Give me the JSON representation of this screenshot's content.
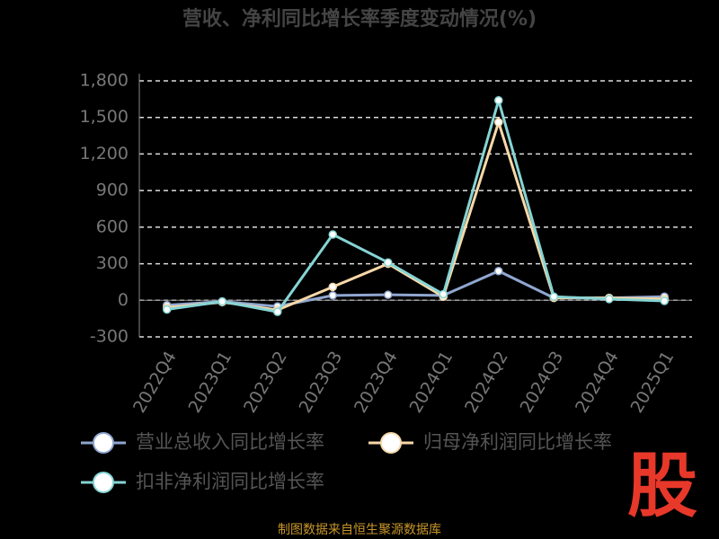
{
  "chart_data": {
    "type": "line",
    "title": "营收、净利同比增长率季度变动情况(%)",
    "categories": [
      "2022Q4",
      "2023Q1",
      "2023Q2",
      "2023Q3",
      "2023Q4",
      "2024Q1",
      "2024Q2",
      "2024Q3",
      "2024Q4",
      "2025Q1"
    ],
    "series": [
      {
        "name": "营业总收入同比增长率",
        "color": "#8fa6d0",
        "values": [
          -40,
          -10,
          -50,
          40,
          45,
          40,
          240,
          20,
          20,
          30
        ]
      },
      {
        "name": "归母净利润同比增长率",
        "color": "#f7d8a8",
        "values": [
          -60,
          -15,
          -80,
          110,
          300,
          30,
          1460,
          20,
          20,
          10
        ]
      },
      {
        "name": "扣非净利润同比增长率",
        "color": "#86d4d4",
        "values": [
          -75,
          -10,
          -95,
          540,
          310,
          50,
          1640,
          30,
          10,
          -5
        ]
      }
    ],
    "ylim": [
      -300,
      1800
    ],
    "yticks": [
      -300,
      0,
      300,
      600,
      900,
      {
        "value": 1200,
        "label": "1,200"
      },
      {
        "value": 1500,
        "label": "1,500"
      },
      {
        "value": 1800,
        "label": "1,800"
      }
    ],
    "grid": true,
    "source": "制图数据来自恒生聚源数据库",
    "logo": "股"
  }
}
